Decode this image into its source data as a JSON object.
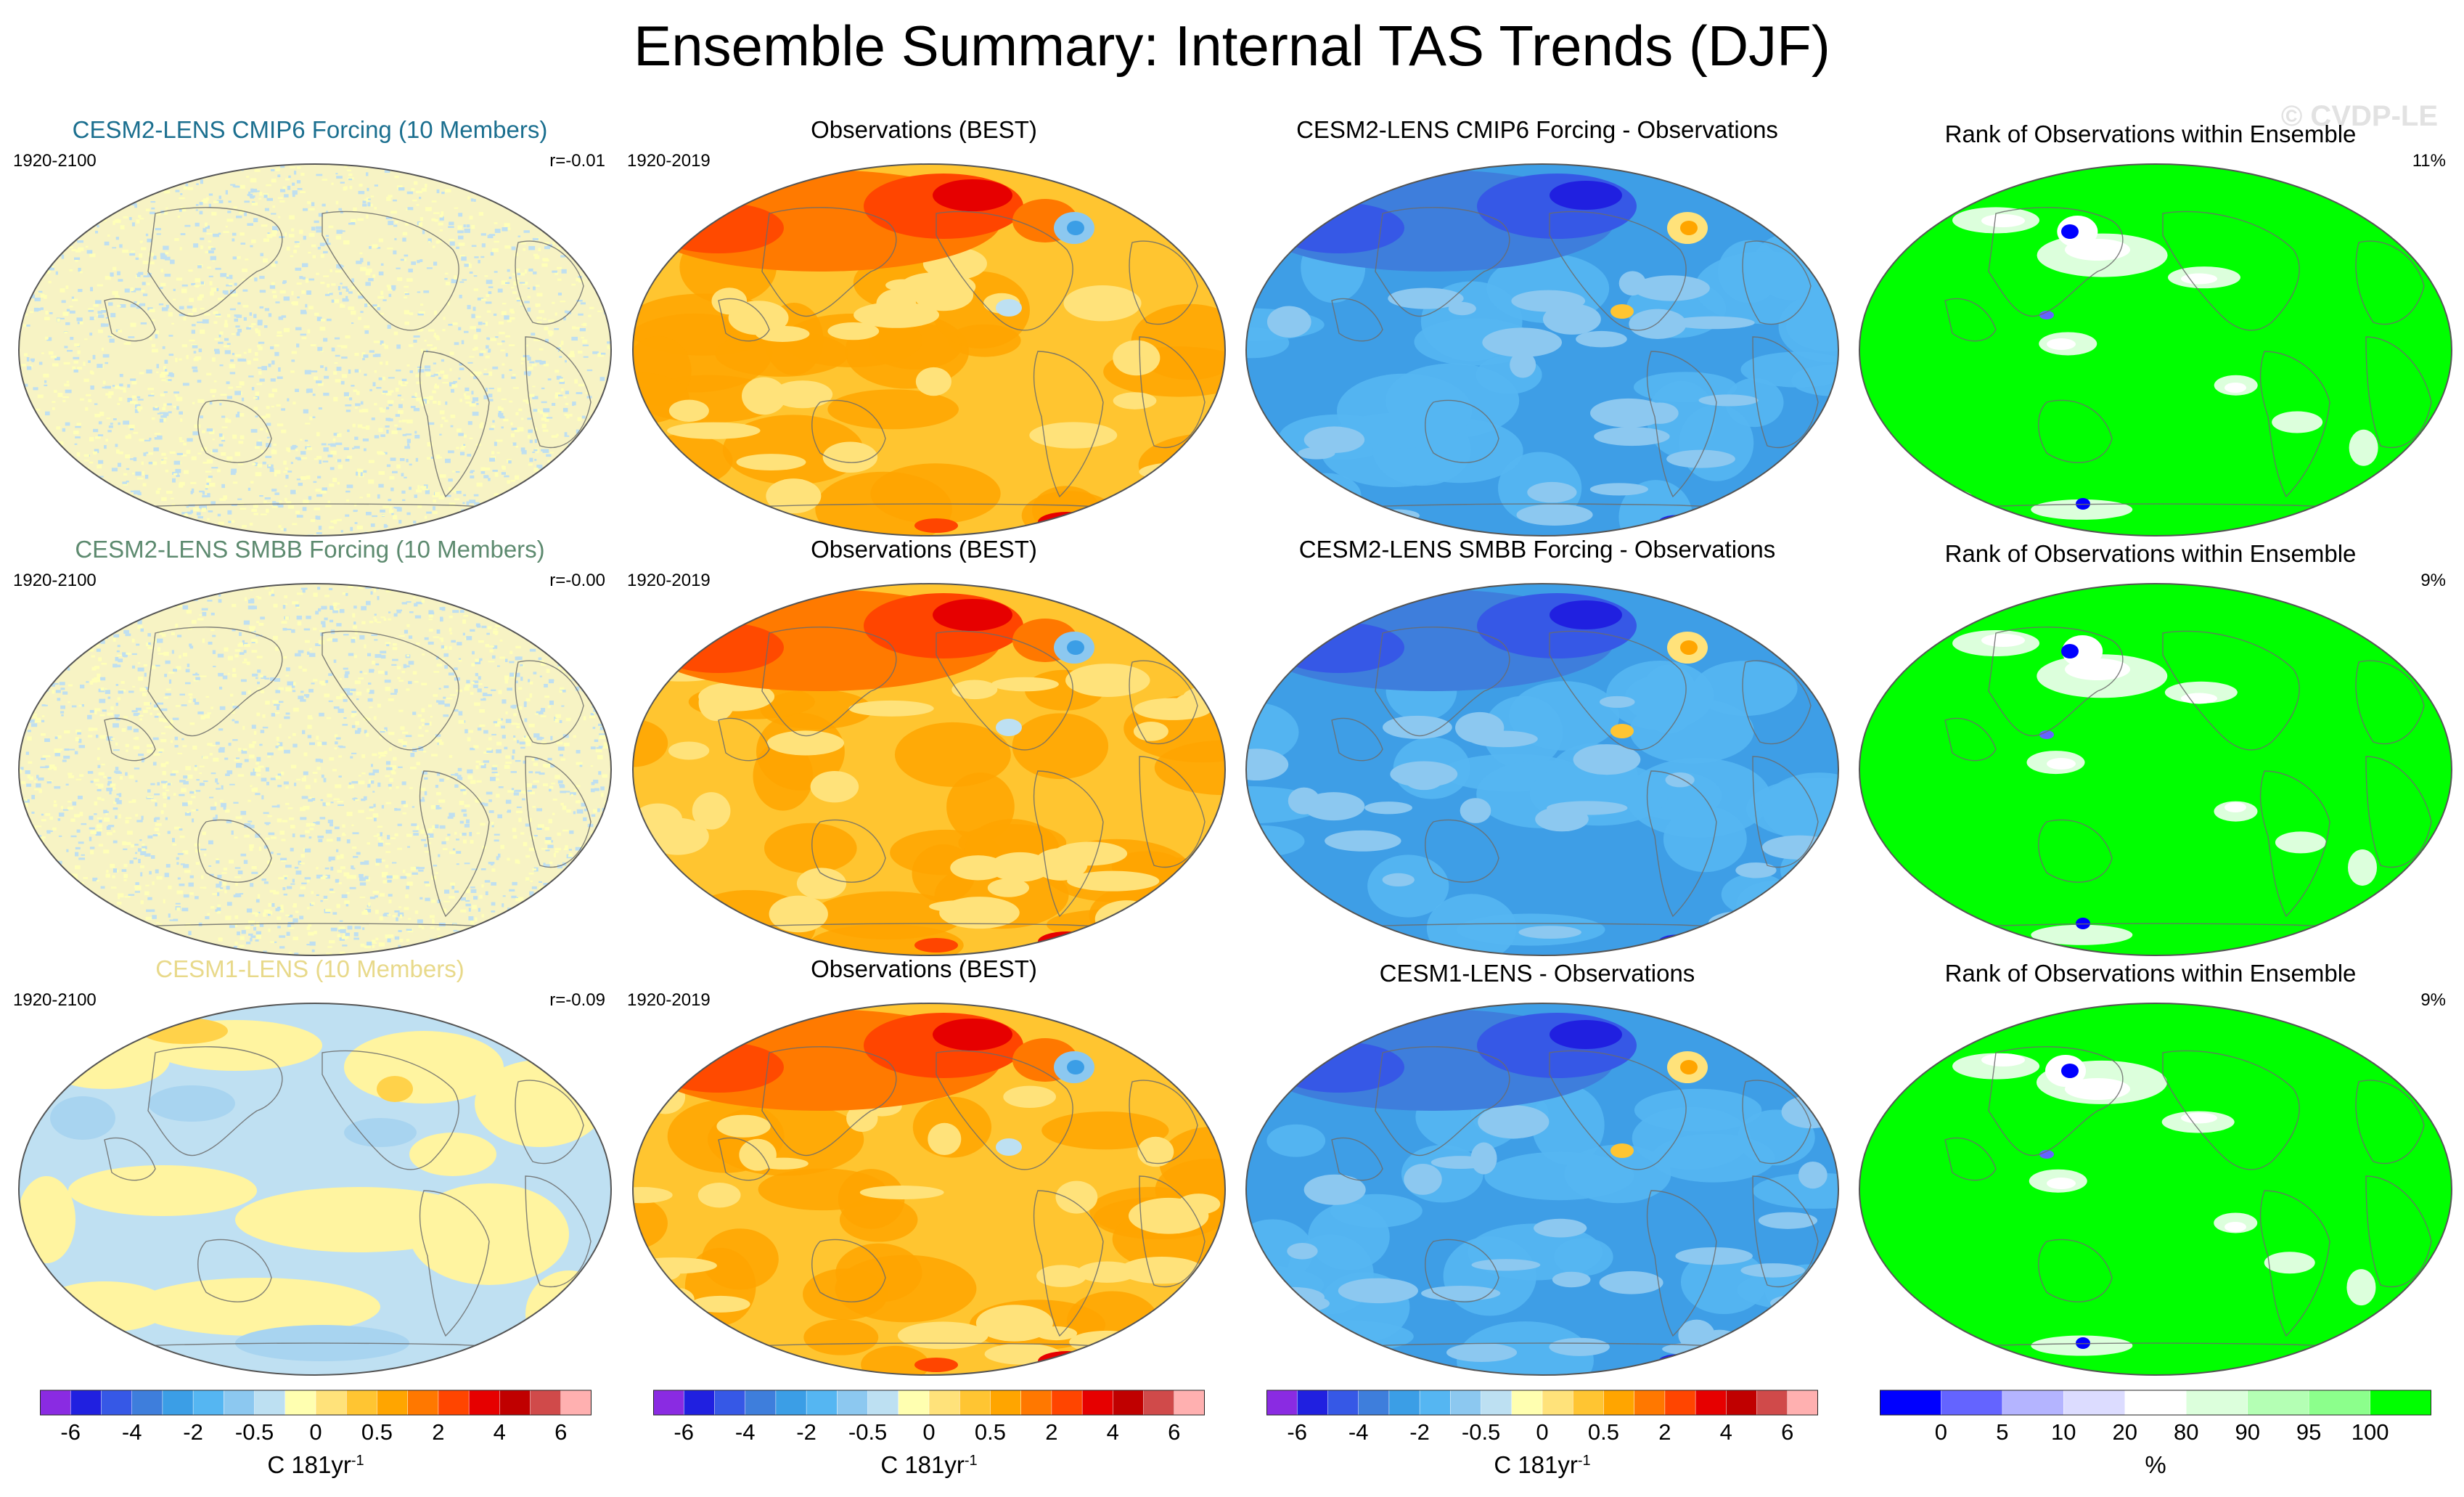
{
  "title": "Ensemble Summary: Internal TAS Trends (DJF)",
  "watermark": "© CVDP-LE",
  "rows": [
    {
      "model": {
        "title": "CESM2-LENS CMIP6 Forcing (10 Members)",
        "color": "#1b6f8f",
        "period": "1920-2100",
        "corr": "r=-0.01",
        "pattern": "noise"
      },
      "obs": {
        "title": "Observations (BEST)",
        "period": "1920-2019"
      },
      "diff": {
        "title": "CESM2-LENS CMIP6 Forcing - Observations"
      },
      "rank": {
        "title": "Rank of Observations within Ensemble",
        "pct": "11%"
      }
    },
    {
      "model": {
        "title": "CESM2-LENS SMBB Forcing (10 Members)",
        "color": "#5d8a6f",
        "period": "1920-2100",
        "corr": "r=-0.00",
        "pattern": "noise"
      },
      "obs": {
        "title": "Observations (BEST)",
        "period": "1920-2019"
      },
      "diff": {
        "title": "CESM2-LENS SMBB Forcing - Observations"
      },
      "rank": {
        "title": "Rank of Observations within Ensemble",
        "pct": "9%"
      }
    },
    {
      "model": {
        "title": "CESM1-LENS (10 Members)",
        "color": "#e8d98a",
        "period": "1920-2100",
        "corr": "r=-0.09",
        "pattern": "smooth"
      },
      "obs": {
        "title": "Observations (BEST)",
        "period": "1920-2019"
      },
      "diff": {
        "title": "CESM1-LENS - Observations"
      },
      "rank": {
        "title": "Rank of Observations within Ensemble",
        "pct": "9%"
      }
    }
  ],
  "chart_data": {
    "type": "heatmap",
    "title": "Ensemble Summary: Internal TAS Trends (DJF)",
    "projection": "Robinson (global)",
    "trend_colorbar": {
      "unit_label": "C 181yr",
      "unit_exponent": "-1",
      "tick_labels": [
        "-6",
        "-4",
        "-2",
        "-0.5",
        "0",
        "0.5",
        "2",
        "4",
        "6"
      ],
      "colors": [
        "#8a2be2",
        "#2020e0",
        "#3658e6",
        "#3e7edc",
        "#3b9ee6",
        "#55b6f2",
        "#8cc8f0",
        "#bde0f2",
        "#ffffb0",
        "#ffe27a",
        "#ffc532",
        "#ffa500",
        "#ff7800",
        "#ff4500",
        "#e60000",
        "#c00000",
        "#d04a4a",
        "#ffb0b0"
      ]
    },
    "rank_colorbar": {
      "unit_label": "%",
      "tick_labels": [
        "0",
        "5",
        "10",
        "20",
        "80",
        "90",
        "95",
        "100"
      ],
      "colors": [
        "#0000ff",
        "#6464ff",
        "#b4b4ff",
        "#dcdcff",
        "#ffffff",
        "#dcffdc",
        "#b4ffb4",
        "#8cff8c",
        "#00ff00"
      ]
    },
    "panels": [
      {
        "row": 1,
        "col": 1,
        "title": "CESM2-LENS CMIP6 Forcing (10 Members)",
        "period": "1920-2100",
        "pattern_correlation": -0.01
      },
      {
        "row": 1,
        "col": 2,
        "title": "Observations (BEST)",
        "period": "1920-2019"
      },
      {
        "row": 1,
        "col": 3,
        "title": "CESM2-LENS CMIP6 Forcing - Observations"
      },
      {
        "row": 1,
        "col": 4,
        "title": "Rank of Observations within Ensemble",
        "area_pct": 11
      },
      {
        "row": 2,
        "col": 1,
        "title": "CESM2-LENS SMBB Forcing (10 Members)",
        "period": "1920-2100",
        "pattern_correlation": 0.0
      },
      {
        "row": 2,
        "col": 2,
        "title": "Observations (BEST)",
        "period": "1920-2019"
      },
      {
        "row": 2,
        "col": 3,
        "title": "CESM2-LENS SMBB Forcing - Observations"
      },
      {
        "row": 2,
        "col": 4,
        "title": "Rank of Observations within Ensemble",
        "area_pct": 9
      },
      {
        "row": 3,
        "col": 1,
        "title": "CESM1-LENS (10 Members)",
        "period": "1920-2100",
        "pattern_correlation": -0.09
      },
      {
        "row": 3,
        "col": 2,
        "title": "Observations (BEST)",
        "period": "1920-2019"
      },
      {
        "row": 3,
        "col": 3,
        "title": "CESM1-LENS - Observations"
      },
      {
        "row": 3,
        "col": 4,
        "title": "Rank of Observations within Ensemble",
        "area_pct": 9
      }
    ]
  }
}
